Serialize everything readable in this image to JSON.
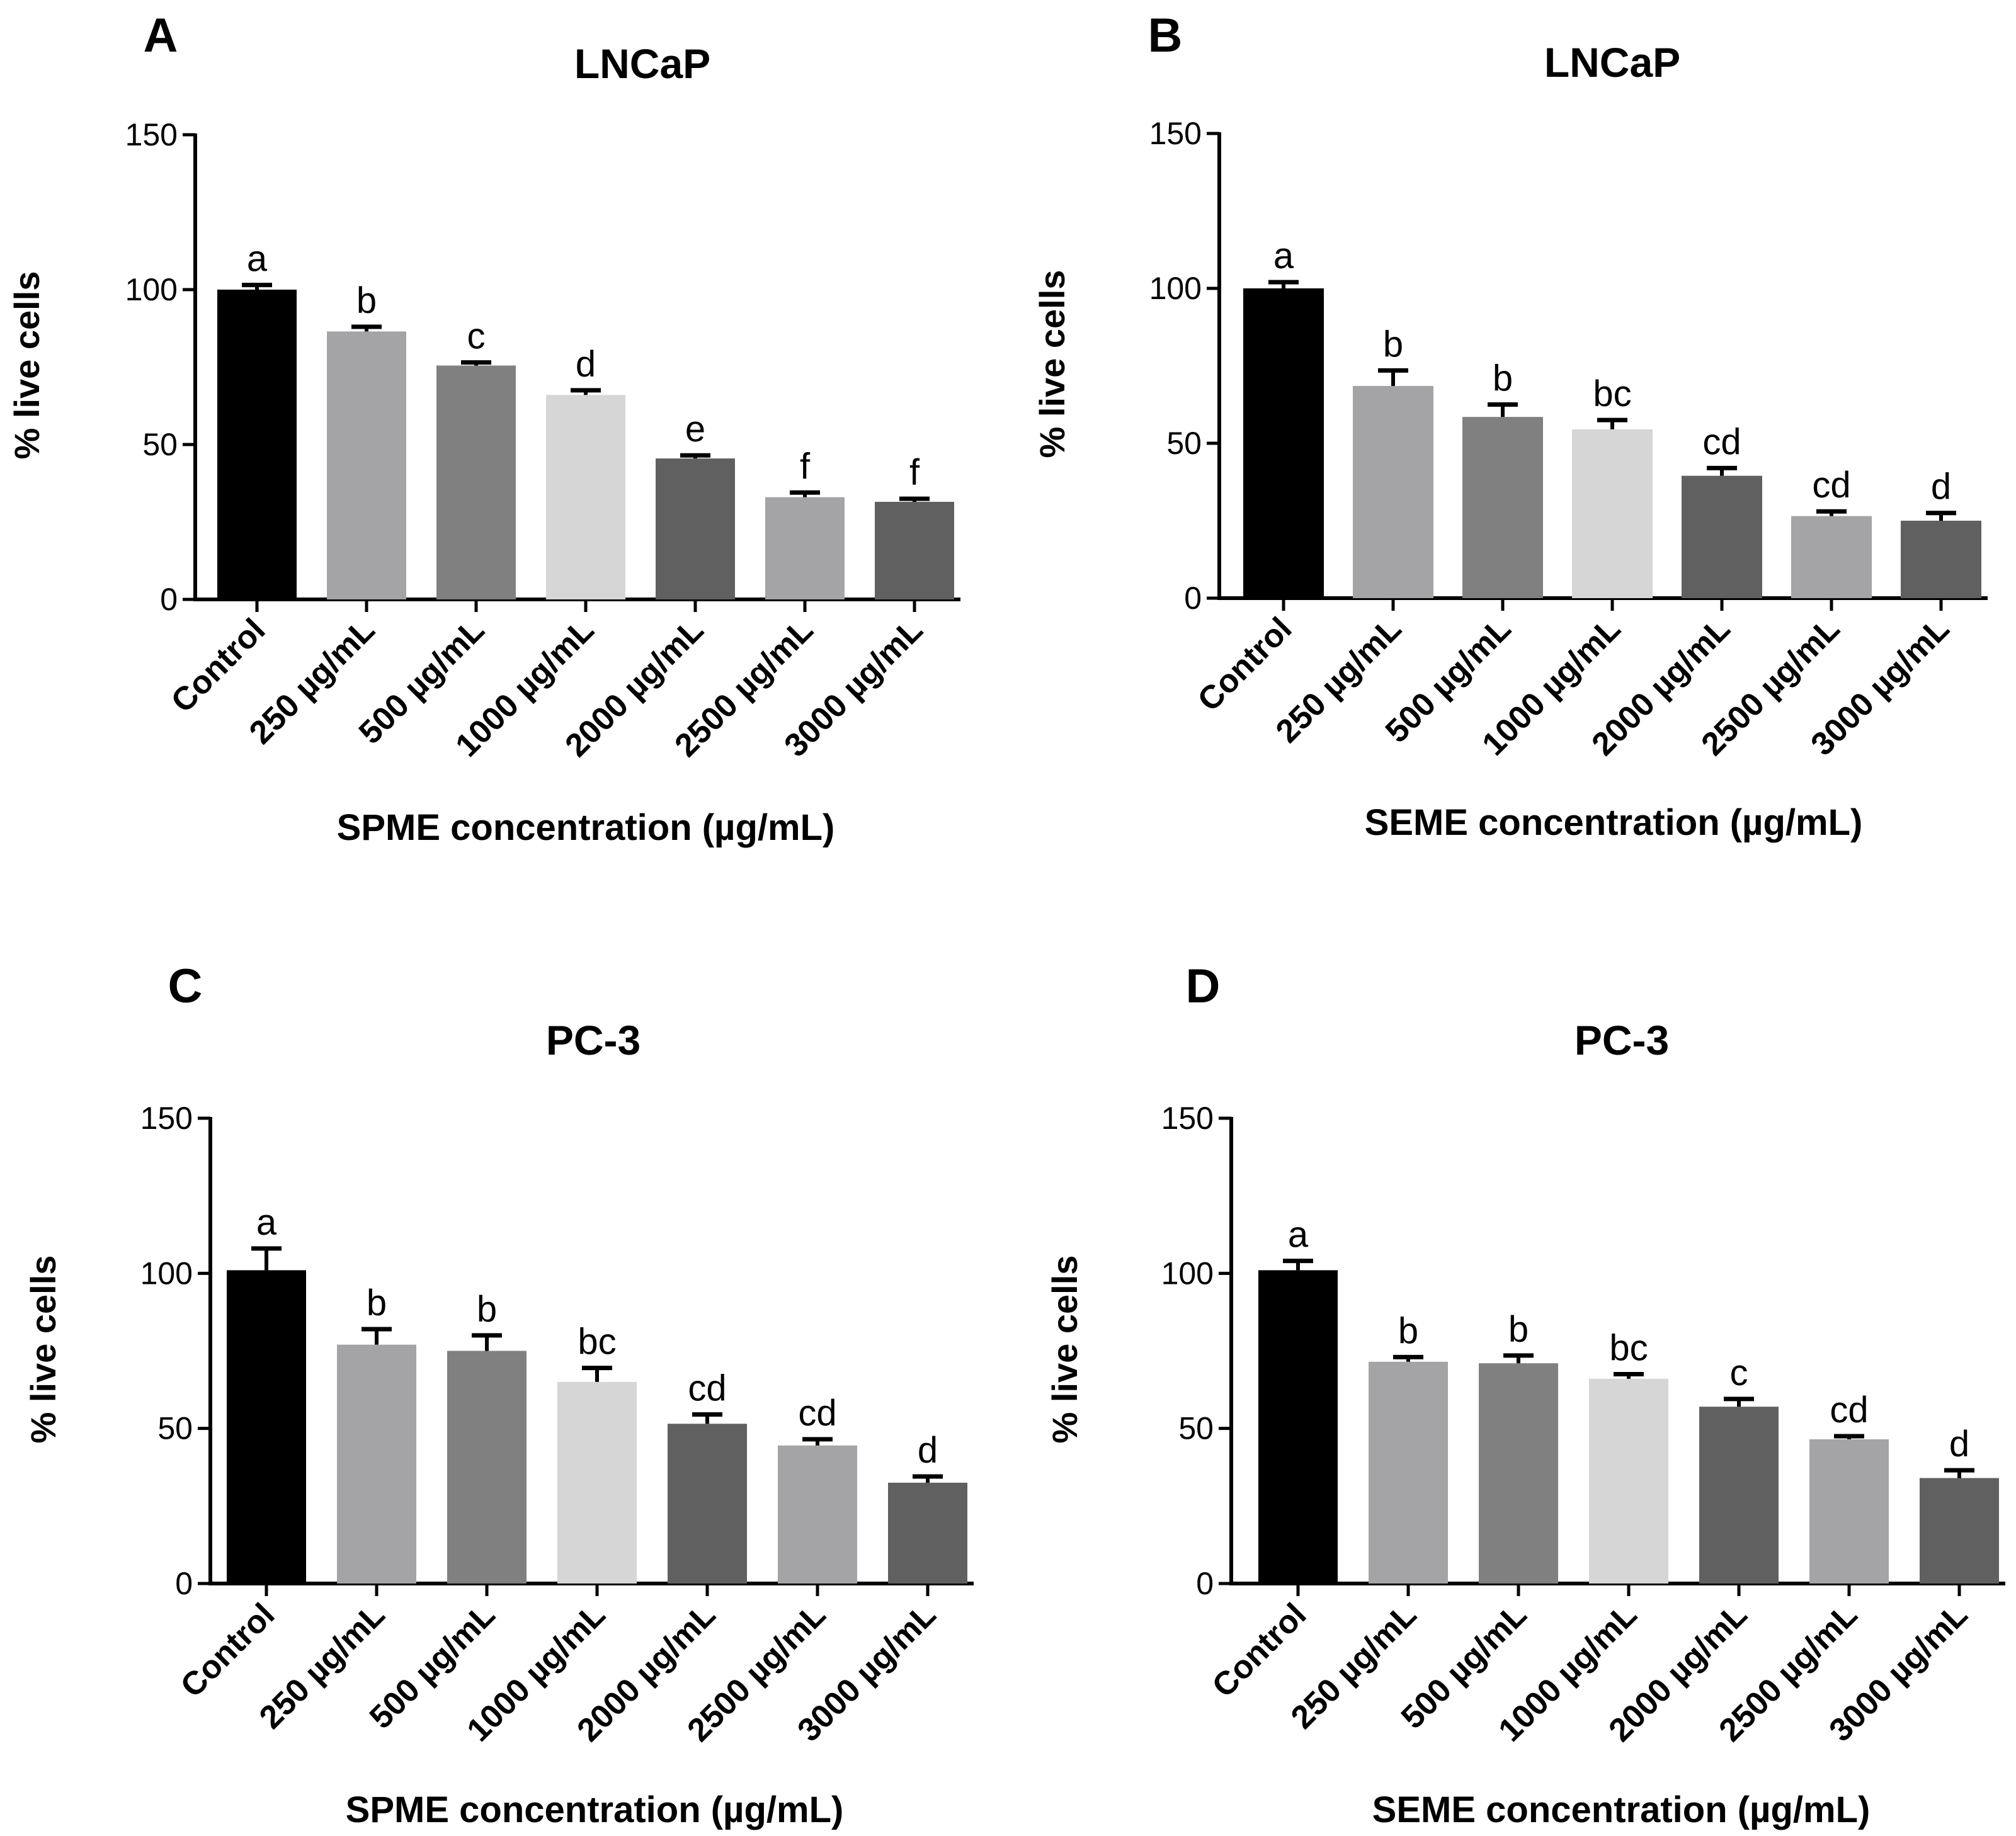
{
  "colors": {
    "control": "#000000",
    "c250": "#a4a4a6",
    "c500": "#808080",
    "c1000": "#d6d6d6",
    "c2000": "#606060",
    "c2500": "#a4a4a6",
    "c3000": "#606060",
    "axis": "#000000",
    "error_bar": "#000000"
  },
  "chart_data": [
    {
      "panel": "A",
      "type": "bar",
      "title": "LNCaP",
      "xlabel": "SPME concentration (µg/mL)",
      "ylabel": "% live cells",
      "ylim": [
        0,
        150
      ],
      "yticks": [
        "0",
        "50",
        "100",
        "150"
      ],
      "categories": [
        "Control",
        "250 µg/mL",
        "500 µg/mL",
        "1000 µg/mL",
        "2000 µg/mL",
        "2500 µg/mL",
        "3000 µg/mL"
      ],
      "values": [
        100,
        86.5,
        75.5,
        66,
        45.5,
        33,
        31.5
      ],
      "errors": [
        1.5,
        1.5,
        1,
        1.5,
        1,
        1.5,
        1
      ],
      "significance": [
        "a",
        "b",
        "c",
        "d",
        "e",
        "f",
        "f"
      ],
      "grid": false,
      "legend": "none"
    },
    {
      "panel": "B",
      "type": "bar",
      "title": "LNCaP",
      "xlabel": "SEME concentration (µg/mL)",
      "ylabel": "% live cells",
      "ylim": [
        0,
        150
      ],
      "yticks": [
        "0",
        "50",
        "100",
        "150"
      ],
      "categories": [
        "Control",
        "250 µg/mL",
        "500 µg/mL",
        "1000 µg/mL",
        "2000 µg/mL",
        "2500 µg/mL",
        "3000 µg/mL"
      ],
      "values": [
        100,
        68.5,
        58.5,
        54.5,
        39.5,
        26.5,
        25
      ],
      "errors": [
        2,
        5,
        4,
        3,
        2.5,
        1.5,
        2.5
      ],
      "significance": [
        "a",
        "b",
        "b",
        "bc",
        "cd",
        "cd",
        "d"
      ],
      "grid": false,
      "legend": "none"
    },
    {
      "panel": "C",
      "type": "bar",
      "title": "PC-3",
      "xlabel": "SPME concentration (µg/mL)",
      "ylabel": "% live cells",
      "ylim": [
        0,
        150
      ],
      "yticks": [
        "0",
        "50",
        "100",
        "150"
      ],
      "categories": [
        "Control",
        "250 µg/mL",
        "500 µg/mL",
        "1000 µg/mL",
        "2000 µg/mL",
        "2500 µg/mL",
        "3000 µg/mL"
      ],
      "values": [
        101,
        77,
        75,
        65,
        51.5,
        44.5,
        32.5
      ],
      "errors": [
        7,
        5,
        5,
        4.5,
        3,
        2,
        2
      ],
      "significance": [
        "a",
        "b",
        "b",
        "bc",
        "cd",
        "cd",
        "d"
      ],
      "grid": false,
      "legend": "none"
    },
    {
      "panel": "D",
      "type": "bar",
      "title": "PC-3",
      "xlabel": "SEME concentration (µg/mL)",
      "ylabel": "% live cells",
      "ylim": [
        0,
        150
      ],
      "yticks": [
        "0",
        "50",
        "100",
        "150"
      ],
      "categories": [
        "Control",
        "250 µg/mL",
        "500 µg/mL",
        "1000 µg/mL",
        "2000 µg/mL",
        "2500 µg/mL",
        "3000 µg/mL"
      ],
      "values": [
        101,
        71.5,
        71,
        66,
        57,
        46.5,
        34
      ],
      "errors": [
        3,
        1.5,
        2.5,
        1.5,
        2.5,
        1,
        2.5
      ],
      "significance": [
        "a",
        "b",
        "b",
        "bc",
        "c",
        "cd",
        "d"
      ],
      "grid": false,
      "legend": "none"
    }
  ]
}
